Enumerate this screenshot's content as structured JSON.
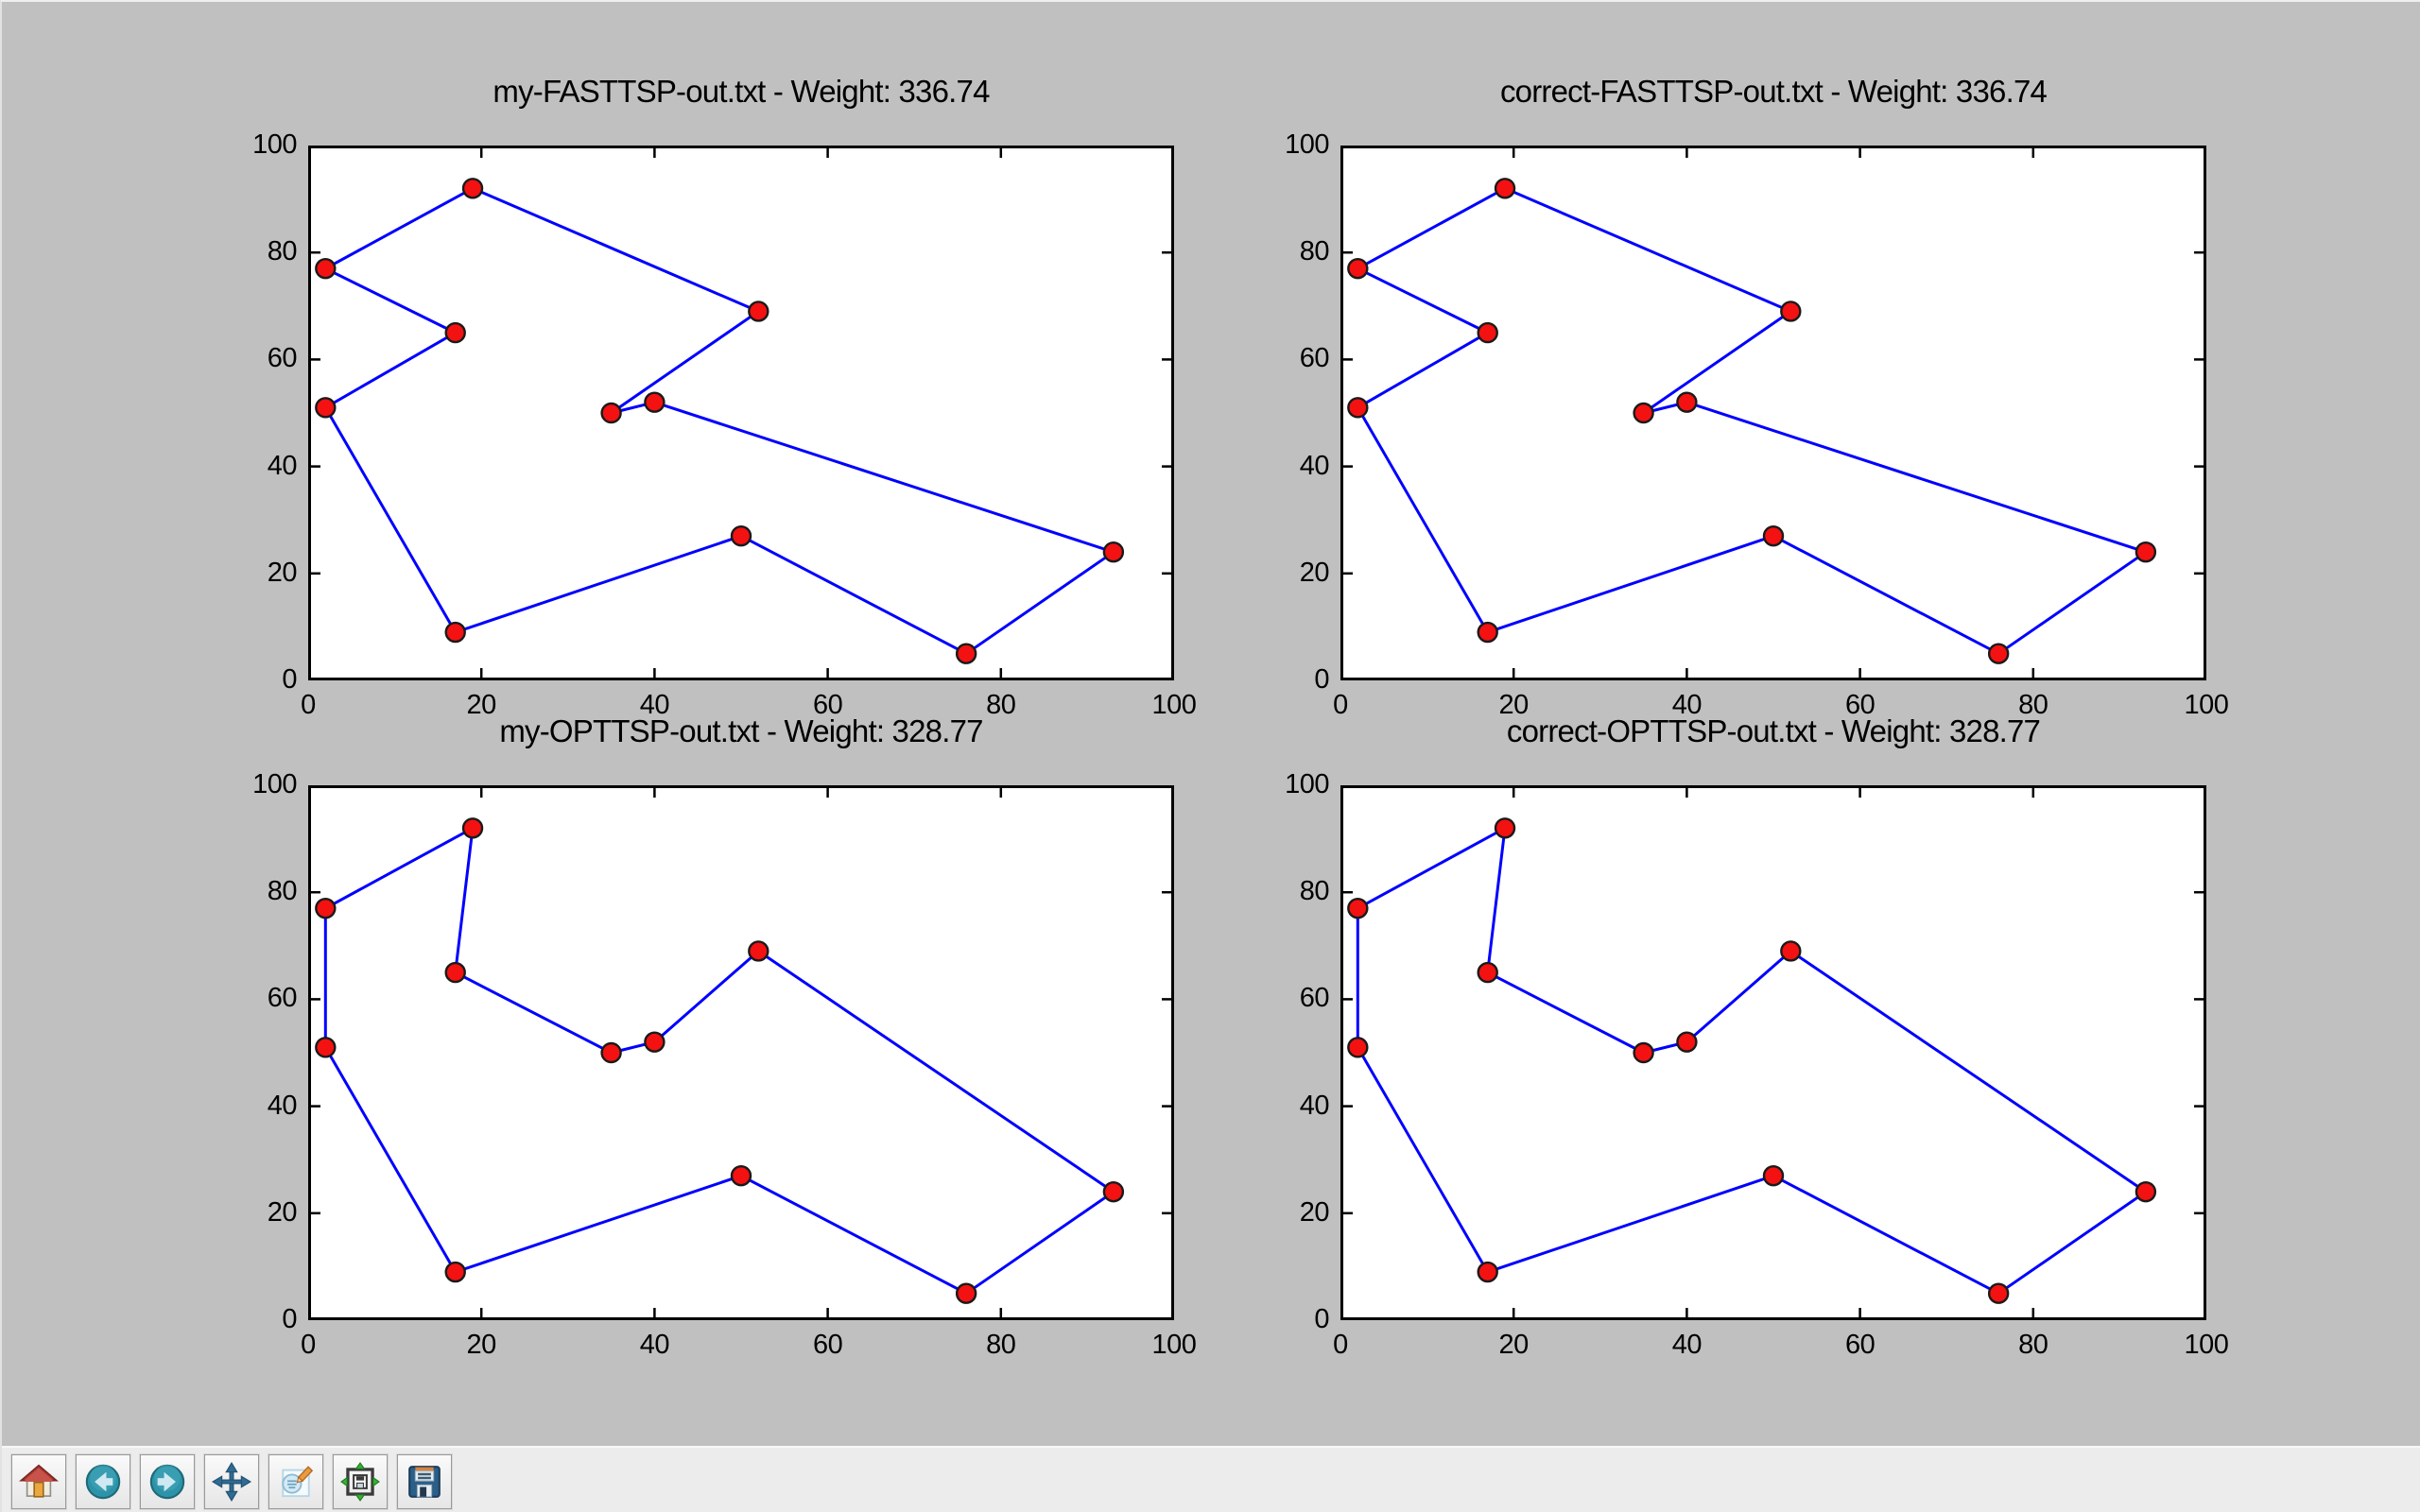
{
  "window": {
    "background": "#c0c0c0"
  },
  "figure": {
    "plot_bg": "#ffffff",
    "spine_color": "#000000",
    "tick_color": "#000000",
    "line_color": "#0000ff",
    "marker_fill": "#f31111",
    "marker_edge": "#1a1a1a"
  },
  "chart_data": [
    {
      "type": "line",
      "title": "my-FASTTSP-out.txt - Weight: 336.74",
      "weight": 336.74,
      "xlim": [
        0,
        100
      ],
      "ylim": [
        0,
        100
      ],
      "x_ticks": [
        0,
        20,
        40,
        60,
        80,
        100
      ],
      "y_ticks": [
        0,
        20,
        40,
        60,
        80,
        100
      ],
      "grid": false,
      "closed": true,
      "tour": [
        [
          2,
          77
        ],
        [
          19,
          92
        ],
        [
          52,
          69
        ],
        [
          35,
          50
        ],
        [
          40,
          52
        ],
        [
          93,
          24
        ],
        [
          76,
          5
        ],
        [
          50,
          27
        ],
        [
          17,
          9
        ],
        [
          2,
          51
        ],
        [
          17,
          65
        ]
      ]
    },
    {
      "type": "line",
      "title": "correct-FASTTSP-out.txt - Weight: 336.74",
      "weight": 336.74,
      "xlim": [
        0,
        100
      ],
      "ylim": [
        0,
        100
      ],
      "x_ticks": [
        0,
        20,
        40,
        60,
        80,
        100
      ],
      "y_ticks": [
        0,
        20,
        40,
        60,
        80,
        100
      ],
      "grid": false,
      "closed": true,
      "tour": [
        [
          2,
          77
        ],
        [
          19,
          92
        ],
        [
          52,
          69
        ],
        [
          35,
          50
        ],
        [
          40,
          52
        ],
        [
          93,
          24
        ],
        [
          76,
          5
        ],
        [
          50,
          27
        ],
        [
          17,
          9
        ],
        [
          2,
          51
        ],
        [
          17,
          65
        ]
      ]
    },
    {
      "type": "line",
      "title": "my-OPTTSP-out.txt - Weight: 328.77",
      "weight": 328.77,
      "xlim": [
        0,
        100
      ],
      "ylim": [
        0,
        100
      ],
      "x_ticks": [
        0,
        20,
        40,
        60,
        80,
        100
      ],
      "y_ticks": [
        0,
        20,
        40,
        60,
        80,
        100
      ],
      "grid": false,
      "closed": true,
      "tour": [
        [
          2,
          77
        ],
        [
          19,
          92
        ],
        [
          17,
          65
        ],
        [
          35,
          50
        ],
        [
          40,
          52
        ],
        [
          52,
          69
        ],
        [
          93,
          24
        ],
        [
          76,
          5
        ],
        [
          50,
          27
        ],
        [
          17,
          9
        ],
        [
          2,
          51
        ]
      ]
    },
    {
      "type": "line",
      "title": "correct-OPTTSP-out.txt - Weight: 328.77",
      "weight": 328.77,
      "xlim": [
        0,
        100
      ],
      "ylim": [
        0,
        100
      ],
      "x_ticks": [
        0,
        20,
        40,
        60,
        80,
        100
      ],
      "y_ticks": [
        0,
        20,
        40,
        60,
        80,
        100
      ],
      "grid": false,
      "closed": true,
      "tour": [
        [
          2,
          77
        ],
        [
          19,
          92
        ],
        [
          17,
          65
        ],
        [
          35,
          50
        ],
        [
          40,
          52
        ],
        [
          52,
          69
        ],
        [
          93,
          24
        ],
        [
          76,
          5
        ],
        [
          50,
          27
        ],
        [
          17,
          9
        ],
        [
          2,
          51
        ]
      ]
    }
  ],
  "toolbar": {
    "background": "#ececec",
    "buttons": [
      {
        "name": "home",
        "icon": "home-icon"
      },
      {
        "name": "back",
        "icon": "back-arrow-icon"
      },
      {
        "name": "forward",
        "icon": "forward-arrow-icon"
      },
      {
        "name": "pan",
        "icon": "pan-arrows-icon"
      },
      {
        "name": "zoom-to-rect",
        "icon": "zoom-rect-icon"
      },
      {
        "name": "configure-subplots",
        "icon": "subplots-icon"
      },
      {
        "name": "save",
        "icon": "save-floppy-icon"
      }
    ]
  }
}
